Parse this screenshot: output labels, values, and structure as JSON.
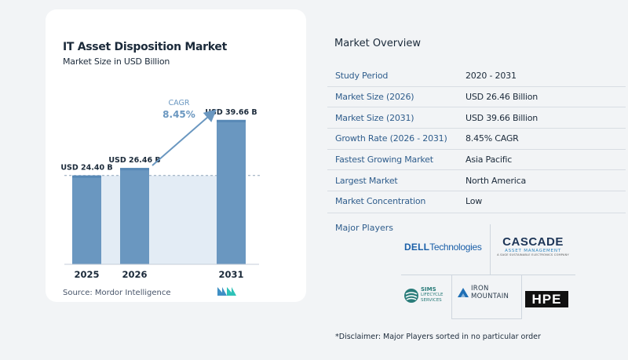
{
  "chart": {
    "title": "IT Asset Disposition Market",
    "subtitle": "Market Size in USD Billion",
    "source": "Source:  Mordor Intelligence",
    "cagr_label": "CAGR",
    "cagr_value": "8.45%"
  },
  "chart_data": {
    "type": "bar",
    "categories": [
      "2025",
      "2026",
      "2031"
    ],
    "values": [
      24.4,
      26.46,
      39.66
    ],
    "data_labels": [
      "USD 24.40 B",
      "USD 26.46 B",
      "USD 39.66 B"
    ],
    "ylim": [
      0,
      42
    ],
    "title": "IT Asset Disposition Market",
    "subtitle": "Market Size in USD Billion",
    "xlabel": "",
    "ylabel": "",
    "annotation": "CAGR 8.45%",
    "grid": false,
    "colors": {
      "bar": "#6a97c0",
      "bar_top": "#5889b6",
      "reference_fill": "#e3ecf5",
      "arrow": "#6a97c0",
      "cagr_text": "#6a97c0"
    }
  },
  "overview": {
    "title": "Market Overview",
    "rows": [
      {
        "label": "Study Period",
        "value": "2020 - 2031"
      },
      {
        "label": "Market Size (2026)",
        "value": "USD 26.46 Billion"
      },
      {
        "label": "Market Size (2031)",
        "value": "USD 39.66 Billion"
      },
      {
        "label": "Growth Rate (2026 - 2031)",
        "value": "8.45% CAGR"
      },
      {
        "label": "Fastest Growing Market",
        "value": "Asia Pacific"
      },
      {
        "label": "Largest Market",
        "value": "North America"
      },
      {
        "label": "Market Concentration",
        "value": "Low"
      }
    ],
    "players_label": "Major Players",
    "players": {
      "dell": {
        "brand": "DELL",
        "suffix": "Technologies"
      },
      "cascade": {
        "name": "CASCADE",
        "line2": "ASSET MANAGEMENT",
        "line3": "A SAGE SUSTAINABLE ELECTRONICS COMPANY"
      },
      "sims": {
        "line1": "SIMS",
        "line2": "LIFECYCLE",
        "line3": "SERVICES"
      },
      "iron": {
        "line1": "IRON",
        "line2": "MOUNTAIN"
      },
      "hpe": {
        "name": "HPE"
      }
    },
    "disclaimer": "*Disclaimer: Major Players sorted in no particular order"
  },
  "colors": {
    "label_blue": "#2f5d8c",
    "text_dark": "#1b2a3a",
    "card_bg": "#ffffff",
    "page_bg": "#f2f4f6"
  }
}
